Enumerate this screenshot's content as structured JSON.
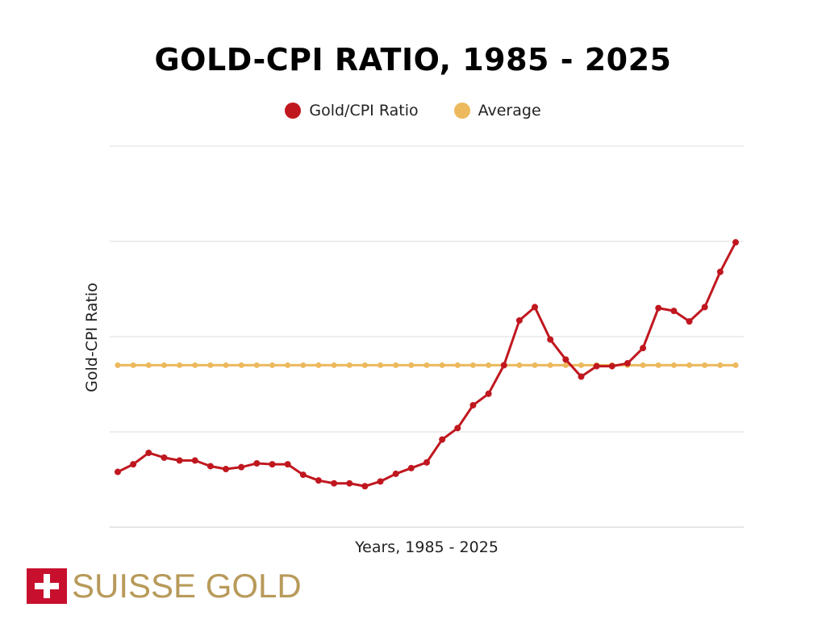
{
  "colors": {
    "ratio": "#c0171f",
    "average": "#ecb95c",
    "grid": "#dddddd",
    "logo_red": "#c8102e",
    "logo_gold": "#b89a5a"
  },
  "logo": {
    "text": "SUISSE GOLD",
    "icon": "swiss-cross-icon"
  },
  "chart_data": {
    "type": "line",
    "title": "GOLD-CPI RATIO, 1985 - 2025",
    "xlabel": "Years, 1985 - 2025",
    "ylabel": "Gold-CPI Ratio",
    "x": [
      1985,
      1986,
      1987,
      1988,
      1989,
      1990,
      1991,
      1992,
      1993,
      1994,
      1995,
      1996,
      1997,
      1998,
      1999,
      2000,
      2001,
      2002,
      2003,
      2004,
      2005,
      2006,
      2007,
      2008,
      2009,
      2010,
      2011,
      2012,
      2013,
      2014,
      2015,
      2016,
      2017,
      2018,
      2019,
      2020,
      2021,
      2022,
      2023,
      2024,
      2025
    ],
    "ylim": [
      0,
      4
    ],
    "grid": true,
    "legend_position": "top-center",
    "series": [
      {
        "name": "Gold/CPI Ratio",
        "color": "#c0171f",
        "markers": true,
        "values": [
          0.58,
          0.66,
          0.78,
          0.73,
          0.7,
          0.7,
          0.64,
          0.61,
          0.63,
          0.67,
          0.66,
          0.66,
          0.55,
          0.49,
          0.46,
          0.46,
          0.43,
          0.48,
          0.56,
          0.62,
          0.68,
          0.92,
          1.04,
          1.28,
          1.4,
          1.7,
          2.17,
          2.31,
          1.97,
          1.76,
          1.58,
          1.69,
          1.69,
          1.72,
          1.88,
          2.3,
          2.27,
          2.16,
          2.31,
          2.68,
          2.99
        ]
      },
      {
        "name": "Average",
        "color": "#ecb95c",
        "markers": true,
        "values": [
          1.7,
          1.7,
          1.7,
          1.7,
          1.7,
          1.7,
          1.7,
          1.7,
          1.7,
          1.7,
          1.7,
          1.7,
          1.7,
          1.7,
          1.7,
          1.7,
          1.7,
          1.7,
          1.7,
          1.7,
          1.7,
          1.7,
          1.7,
          1.7,
          1.7,
          1.7,
          1.7,
          1.7,
          1.7,
          1.7,
          1.7,
          1.7,
          1.7,
          1.7,
          1.7,
          1.7,
          1.7,
          1.7,
          1.7,
          1.7,
          1.7
        ]
      }
    ]
  }
}
